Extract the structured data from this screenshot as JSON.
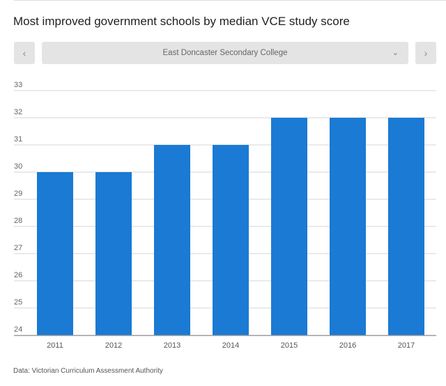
{
  "header": {
    "title": "Most improved government schools by median VCE study score"
  },
  "nav": {
    "prev_icon": "‹",
    "next_icon": "›",
    "selected_school": "East Doncaster Secondary College",
    "dropdown_icon": "⌄"
  },
  "footer": {
    "source": "Data: Victorian Curriculum Assessment Authority"
  },
  "colors": {
    "bar": "#1a7ad4",
    "grid": "#d6d6d6",
    "axis": "#999999"
  },
  "chart_data": {
    "type": "bar",
    "categories": [
      "2011",
      "2012",
      "2013",
      "2014",
      "2015",
      "2016",
      "2017"
    ],
    "values": [
      30,
      30,
      31,
      31,
      32,
      32,
      32
    ],
    "ylim": [
      24,
      33
    ],
    "yticks": [
      24,
      25,
      26,
      27,
      28,
      29,
      30,
      31,
      32,
      33
    ],
    "grid": true
  }
}
